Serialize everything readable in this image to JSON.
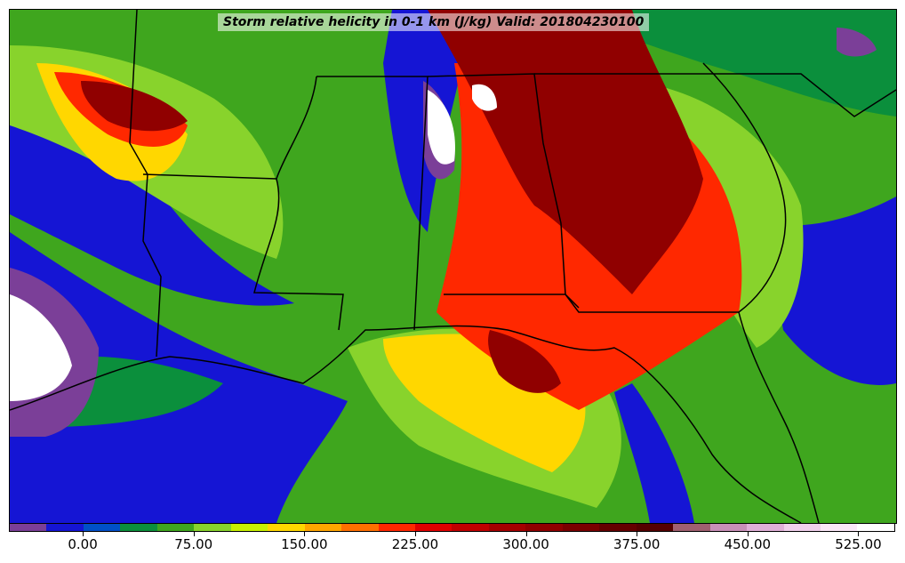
{
  "title": "Storm relative helicity in 0-1 km (J/kg) Valid: 201804230100",
  "colorbar": {
    "segment_colors": [
      "#7b3f98",
      "#1515d4",
      "#0050c8",
      "#0b8f3c",
      "#3fa61e",
      "#88d32c",
      "#c8f000",
      "#ffd700",
      "#ffa500",
      "#ff7000",
      "#ff2800",
      "#e00000",
      "#c00000",
      "#a50000",
      "#900000",
      "#7a0000",
      "#650000",
      "#550000",
      "#a06070",
      "#c890b8",
      "#e0b0d8",
      "#f0d0ec",
      "#fbe8f8",
      "#ffffff"
    ],
    "tick_labels": [
      "0.00",
      "75.00",
      "150.00",
      "225.00",
      "300.00",
      "375.00",
      "450.00",
      "525.00"
    ],
    "tick_segment_index": [
      2,
      5,
      8,
      11,
      14,
      17,
      20,
      23
    ]
  },
  "map": {
    "fields": [
      {
        "color": "#1515d4",
        "name": "low-helicity-gulf"
      },
      {
        "color": "#0b8f3c",
        "name": "moderate-helicity"
      },
      {
        "color": "#88d32c",
        "name": "elevated-helicity"
      },
      {
        "color": "#ffd700",
        "name": "high-helicity"
      },
      {
        "color": "#ff2800",
        "name": "very-high-helicity"
      },
      {
        "color": "#900000",
        "name": "extreme-helicity"
      },
      {
        "color": "#7b3f98",
        "name": "negative-helicity"
      },
      {
        "color": "#ffffff",
        "name": "max-helicity"
      }
    ],
    "boundary_color": "#000000"
  }
}
